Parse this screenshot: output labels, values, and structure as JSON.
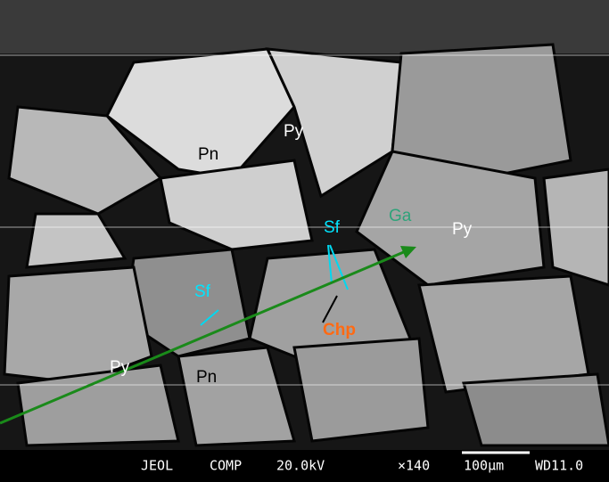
{
  "labels": [
    "Py",
    "Pn",
    "Sf",
    "Ga",
    "Py",
    "Sf",
    "Chp",
    "Py",
    "Pn"
  ],
  "info_bar": {
    "instrument": "JEOL",
    "mode": "COMP",
    "voltage": "20.0kV",
    "magnification": "×140",
    "scale": "100μm",
    "working_distance": "WD11.0"
  }
}
